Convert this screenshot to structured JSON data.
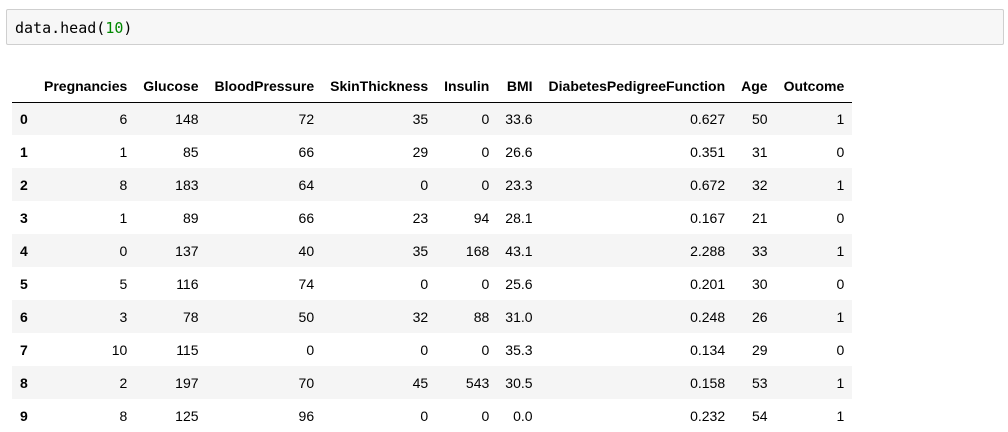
{
  "input_cell": {
    "code_prefix": "data.head(",
    "code_arg": "10",
    "code_suffix": ")"
  },
  "table": {
    "index_header": "",
    "columns": [
      "Pregnancies",
      "Glucose",
      "BloodPressure",
      "SkinThickness",
      "Insulin",
      "BMI",
      "DiabetesPedigreeFunction",
      "Age",
      "Outcome"
    ],
    "rows": [
      {
        "index": "0",
        "cells": [
          "6",
          "148",
          "72",
          "35",
          "0",
          "33.6",
          "0.627",
          "50",
          "1"
        ]
      },
      {
        "index": "1",
        "cells": [
          "1",
          "85",
          "66",
          "29",
          "0",
          "26.6",
          "0.351",
          "31",
          "0"
        ]
      },
      {
        "index": "2",
        "cells": [
          "8",
          "183",
          "64",
          "0",
          "0",
          "23.3",
          "0.672",
          "32",
          "1"
        ]
      },
      {
        "index": "3",
        "cells": [
          "1",
          "89",
          "66",
          "23",
          "94",
          "28.1",
          "0.167",
          "21",
          "0"
        ]
      },
      {
        "index": "4",
        "cells": [
          "0",
          "137",
          "40",
          "35",
          "168",
          "43.1",
          "2.288",
          "33",
          "1"
        ]
      },
      {
        "index": "5",
        "cells": [
          "5",
          "116",
          "74",
          "0",
          "0",
          "25.6",
          "0.201",
          "30",
          "0"
        ]
      },
      {
        "index": "6",
        "cells": [
          "3",
          "78",
          "50",
          "32",
          "88",
          "31.0",
          "0.248",
          "26",
          "1"
        ]
      },
      {
        "index": "7",
        "cells": [
          "10",
          "115",
          "0",
          "0",
          "0",
          "35.3",
          "0.134",
          "29",
          "0"
        ]
      },
      {
        "index": "8",
        "cells": [
          "2",
          "197",
          "70",
          "45",
          "543",
          "30.5",
          "0.158",
          "53",
          "1"
        ]
      },
      {
        "index": "9",
        "cells": [
          "8",
          "125",
          "96",
          "0",
          "0",
          "0.0",
          "0.232",
          "54",
          "1"
        ]
      }
    ]
  },
  "colors": {
    "cell_background": "#f7f7f7",
    "cell_border": "#cfcfcf",
    "number_literal": "#008800",
    "striped_row": "#f5f5f5"
  }
}
